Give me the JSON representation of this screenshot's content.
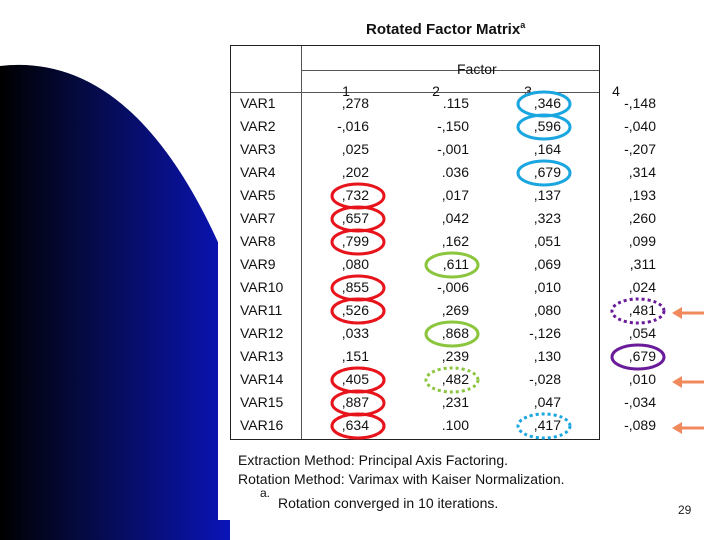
{
  "table": {
    "title": "Rotated Factor Matrix",
    "title_marker": "a",
    "factor_header": "Factor",
    "columns": [
      "1",
      "2",
      "3",
      "4"
    ],
    "rows": [
      {
        "var": "VAR1",
        "values": [
          ",278",
          ".115",
          ",346",
          "-,148"
        ]
      },
      {
        "var": "VAR2",
        "values": [
          "-,016",
          "-,150",
          ",596",
          "-,040"
        ]
      },
      {
        "var": "VAR3",
        "values": [
          ",025",
          "-,001",
          ",164",
          "-,207"
        ]
      },
      {
        "var": "VAR4",
        "values": [
          ",202",
          ".036",
          ",679",
          ",314"
        ]
      },
      {
        "var": "VAR5",
        "values": [
          ",732",
          ",017",
          ",137",
          ",193"
        ]
      },
      {
        "var": "VAR7",
        "values": [
          ",657",
          ",042",
          ",323",
          ",260"
        ]
      },
      {
        "var": "VAR8",
        "values": [
          ",799",
          ",162",
          ",051",
          ",099"
        ]
      },
      {
        "var": "VAR9",
        "values": [
          ",080",
          ",611",
          ",069",
          ",311"
        ]
      },
      {
        "var": "VAR10",
        "values": [
          ",855",
          "-,006",
          ",010",
          ",024"
        ]
      },
      {
        "var": "VAR11",
        "values": [
          ",526",
          ",269",
          ",080",
          ",481"
        ]
      },
      {
        "var": "VAR12",
        "values": [
          ",033",
          ",868",
          "-,126",
          ",054"
        ]
      },
      {
        "var": "VAR13",
        "values": [
          ",151",
          ",239",
          ",130",
          ",679"
        ]
      },
      {
        "var": "VAR14",
        "values": [
          ",405",
          ",482",
          "-,028",
          ",010"
        ]
      },
      {
        "var": "VAR15",
        "values": [
          ",887",
          ",231",
          ",047",
          "-,034"
        ]
      },
      {
        "var": "VAR16",
        "values": [
          ",634",
          ".100",
          ",417",
          "-,089"
        ]
      }
    ]
  },
  "notes": {
    "extraction": "Extraction Method: Principal Axis Factoring.",
    "rotation": "Rotation Method: Varimax with Kaiser Normalization.",
    "footnote_marker": "a.",
    "footnote": "Rotation converged in 10 iterations."
  },
  "highlight_colors": {
    "factor1": "#e8141c",
    "factor2": "#8cc63f",
    "factor3": "#1aa6e0",
    "factor4": "#6a1b9a",
    "arrow": "#f08a5d"
  },
  "slide_number": "29"
}
